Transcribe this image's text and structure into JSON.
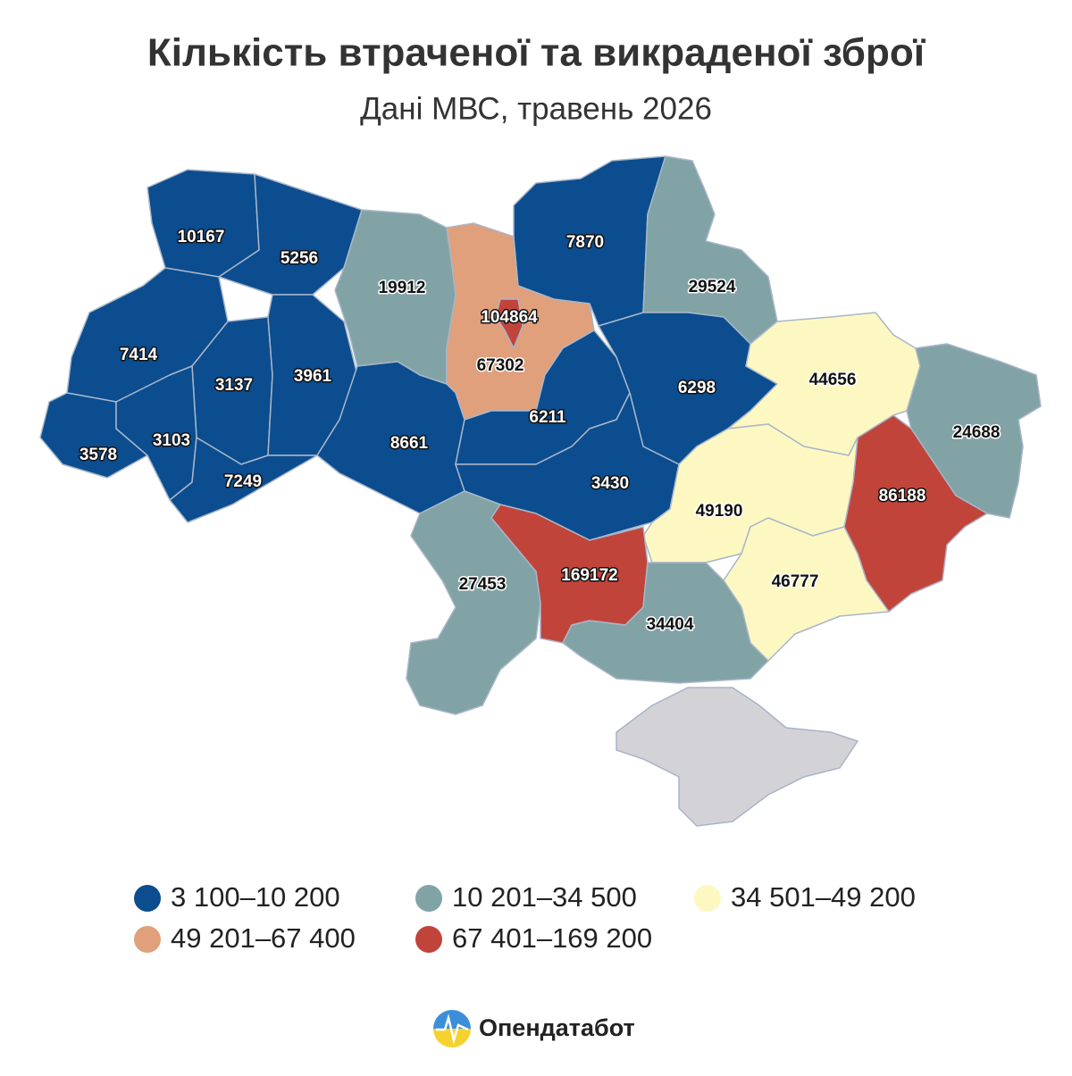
{
  "title": "Кількість втраченої та викраденої зброї",
  "subtitle": "Дані МВС, травень 2026",
  "legend": [
    {
      "label": "3 100–10 200",
      "color": "#0b4d8f"
    },
    {
      "label": "10 201–34 500",
      "color": "#81a3a5"
    },
    {
      "label": "34 501–49 200",
      "color": "#fdf8c2"
    },
    {
      "label": "49 201–67 400",
      "color": "#e0a07b"
    },
    {
      "label": "67 401–169 200",
      "color": "#c1443b"
    }
  ],
  "regions": [
    {
      "value": 10167,
      "color": "#0b4d8f"
    },
    {
      "value": 5256,
      "color": "#0b4d8f"
    },
    {
      "value": 7414,
      "color": "#0b4d8f"
    },
    {
      "value": 3137,
      "color": "#0b4d8f"
    },
    {
      "value": 3961,
      "color": "#0b4d8f"
    },
    {
      "value": 3578,
      "color": "#0b4d8f"
    },
    {
      "value": 3103,
      "color": "#0b4d8f"
    },
    {
      "value": 7249,
      "color": "#0b4d8f"
    },
    {
      "value": 19912,
      "color": "#81a3a5"
    },
    {
      "value": 67302,
      "color": "#e0a07b"
    },
    {
      "value": 104864,
      "color": "#c1443b"
    },
    {
      "value": 7870,
      "color": "#0b4d8f"
    },
    {
      "value": 29524,
      "color": "#81a3a5"
    },
    {
      "value": 8661,
      "color": "#0b4d8f"
    },
    {
      "value": 6211,
      "color": "#0b4d8f"
    },
    {
      "value": 6298,
      "color": "#0b4d8f"
    },
    {
      "value": 3430,
      "color": "#0b4d8f"
    },
    {
      "value": 44656,
      "color": "#fdf8c2"
    },
    {
      "value": 24688,
      "color": "#81a3a5"
    },
    {
      "value": 86188,
      "color": "#c1443b"
    },
    {
      "value": 49190,
      "color": "#fdf8c2"
    },
    {
      "value": 46777,
      "color": "#fdf8c2"
    },
    {
      "value": 27453,
      "color": "#81a3a5"
    },
    {
      "value": 169172,
      "color": "#c1443b"
    },
    {
      "value": 34404,
      "color": "#81a3a5"
    }
  ],
  "brand": "Опендатабот"
}
